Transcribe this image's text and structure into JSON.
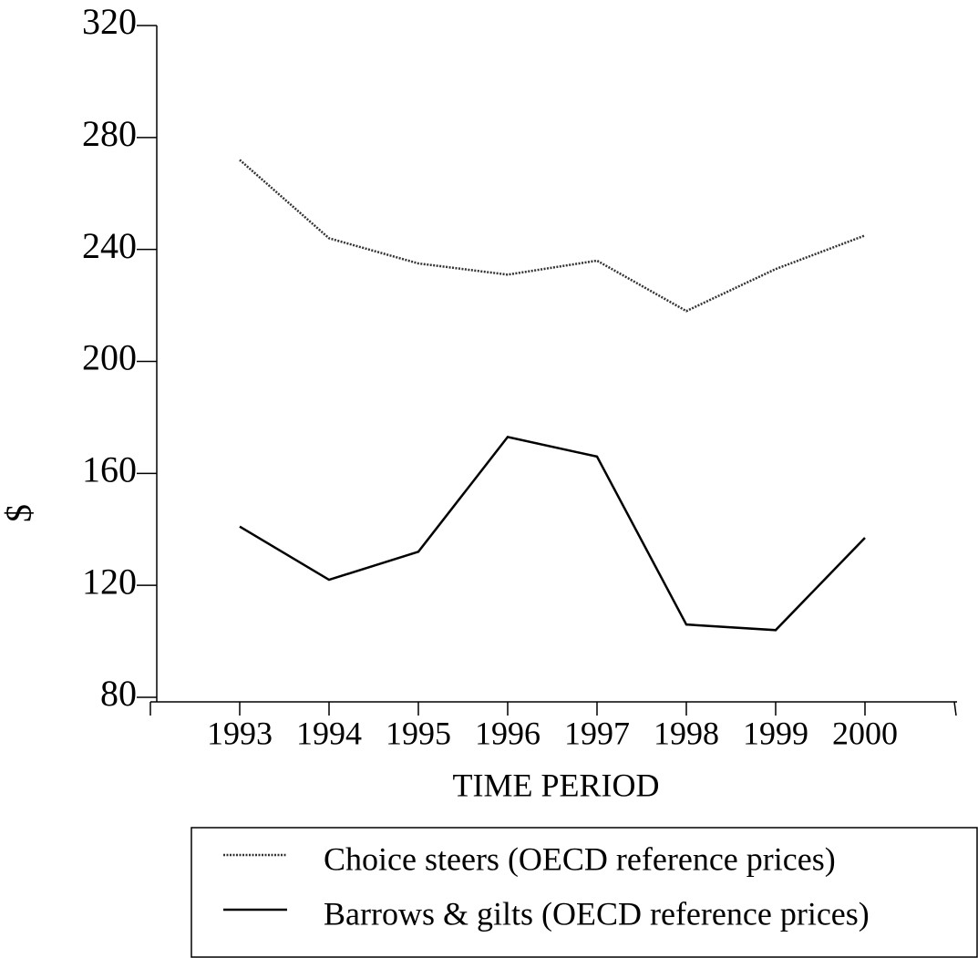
{
  "chart_data": {
    "type": "line",
    "x_label": "TIME PERIOD",
    "y_label": "$",
    "categories": [
      "1993",
      "1994",
      "1995",
      "1996",
      "1997",
      "1998",
      "1999",
      "2000"
    ],
    "series": [
      {
        "name": "Choice steers (OECD reference prices)",
        "color": "#333333",
        "style": "dotted",
        "values": [
          272,
          244,
          235,
          231,
          236,
          218,
          233,
          245
        ]
      },
      {
        "name": "Barrows & gilts (OECD reference prices)",
        "color": "#000000",
        "style": "solid",
        "values": [
          141,
          122,
          132,
          173,
          166,
          106,
          104,
          137
        ]
      }
    ],
    "ylim": [
      80,
      320
    ],
    "yticks": [
      80,
      120,
      160,
      200,
      240,
      280,
      320
    ],
    "grid": false
  }
}
